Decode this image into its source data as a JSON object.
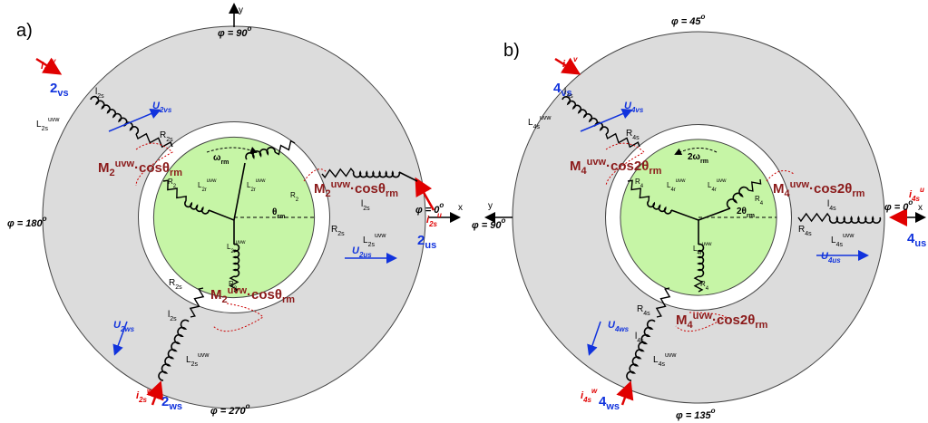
{
  "panels": [
    {
      "labels": {
        "tag": [
          "a)"
        ],
        "y": [
          "y"
        ],
        "x": [
          "x"
        ],
        "phi_top": [
          "φ = 90",
          "o"
        ],
        "phi_left": [
          "φ = 180",
          "o"
        ],
        "phi_right": [
          "φ = 0",
          "o"
        ],
        "phi_bottom": [
          "φ = 270",
          "o"
        ],
        "i_v": [
          "i",
          "2s",
          "v"
        ],
        "n_v": [
          "2",
          "vs"
        ],
        "U_v": [
          "U",
          "2vs"
        ],
        "l_v": [
          "l",
          "2s"
        ],
        "L_v": [
          "L",
          "2s",
          "uvw"
        ],
        "R_v": [
          "R",
          "2s"
        ],
        "M_v": [
          "M",
          "2",
          "uvw",
          "·cosθ",
          "rm"
        ],
        "w": [
          "ω",
          "rm"
        ],
        "R_r1": [
          "R",
          "2"
        ],
        "R_r2": [
          "R",
          "2"
        ],
        "R_r3": [
          "R",
          "2"
        ],
        "L_r1": [
          "L",
          "2r",
          "uvw"
        ],
        "L_r2": [
          "L",
          "2r",
          "uvw"
        ],
        "L_r3": [
          "L",
          "2r",
          "uvw"
        ],
        "theta": [
          "θ",
          "rm"
        ],
        "M_u": [
          "M",
          "2",
          "uvw",
          "·cosθ",
          "rm"
        ],
        "l_u": [
          "l",
          "2s"
        ],
        "R_u": [
          "R",
          "2s"
        ],
        "L_u": [
          "L",
          "2s",
          "uvw"
        ],
        "U_u": [
          "U",
          "2us"
        ],
        "n_u": [
          "2",
          "us"
        ],
        "i_u": [
          "i",
          "2s",
          "u"
        ],
        "R_w": [
          "R",
          "2s"
        ],
        "l_w": [
          "l",
          "2s"
        ],
        "L_w": [
          "L",
          "2s",
          "uvw"
        ],
        "U_w": [
          "U",
          "2ws"
        ],
        "M_w": [
          "M",
          "2",
          "uvw",
          "·cosθ",
          "rm"
        ],
        "i_w": [
          "i",
          "2s",
          "w"
        ],
        "n_w": [
          "2",
          "ws"
        ]
      }
    },
    {
      "labels": {
        "tag": [
          "b)"
        ],
        "y": [
          "y"
        ],
        "x": [
          "x"
        ],
        "phi_top": [
          "φ = 45",
          "o"
        ],
        "phi_left": [
          "φ = 90",
          "o"
        ],
        "phi_right": [
          "φ = 0",
          "o"
        ],
        "phi_bottom": [
          "φ = 135",
          "o"
        ],
        "i_v": [
          "i",
          "4s",
          "v"
        ],
        "n_v": [
          "4",
          "vs"
        ],
        "U_v": [
          "U",
          "4vs"
        ],
        "l_v": [
          "l",
          "4s"
        ],
        "L_v": [
          "L",
          "4s",
          "uvw"
        ],
        "R_v": [
          "R",
          "4s"
        ],
        "M_v": [
          "M",
          "4",
          "uvw",
          "·cos2θ",
          "rm"
        ],
        "w": [
          "2ω",
          "rm"
        ],
        "R_r1": [
          "R",
          "4"
        ],
        "R_r2": [
          "R",
          "4"
        ],
        "R_r3": [
          "R",
          "4"
        ],
        "L_r1": [
          "L",
          "4r",
          "uvw"
        ],
        "L_r2": [
          "L",
          "4r",
          "uvw"
        ],
        "L_r3": [
          "L",
          "4r",
          "uvw"
        ],
        "theta": [
          "2θ",
          "rm"
        ],
        "M_u": [
          "M",
          "4",
          "uvw",
          "·cos2θ",
          "rm"
        ],
        "l_u": [
          "l",
          "4s"
        ],
        "R_u": [
          "R",
          "4s"
        ],
        "L_u": [
          "L",
          "4s",
          "uvw"
        ],
        "U_u": [
          "U",
          "4us"
        ],
        "n_u": [
          "4",
          "us"
        ],
        "i_u": [
          "i",
          "4s",
          "u"
        ],
        "R_w": [
          "R",
          "4s"
        ],
        "l_w": [
          "l",
          "4s"
        ],
        "L_w": [
          "L",
          "4s",
          "uvw"
        ],
        "U_w": [
          "U",
          "4ws"
        ],
        "M_w": [
          "M",
          "4",
          "uvw",
          "·cos2θ",
          "rm"
        ],
        "i_w": [
          "i",
          "4s",
          "w"
        ],
        "n_w": [
          "4",
          "ws"
        ]
      }
    }
  ]
}
